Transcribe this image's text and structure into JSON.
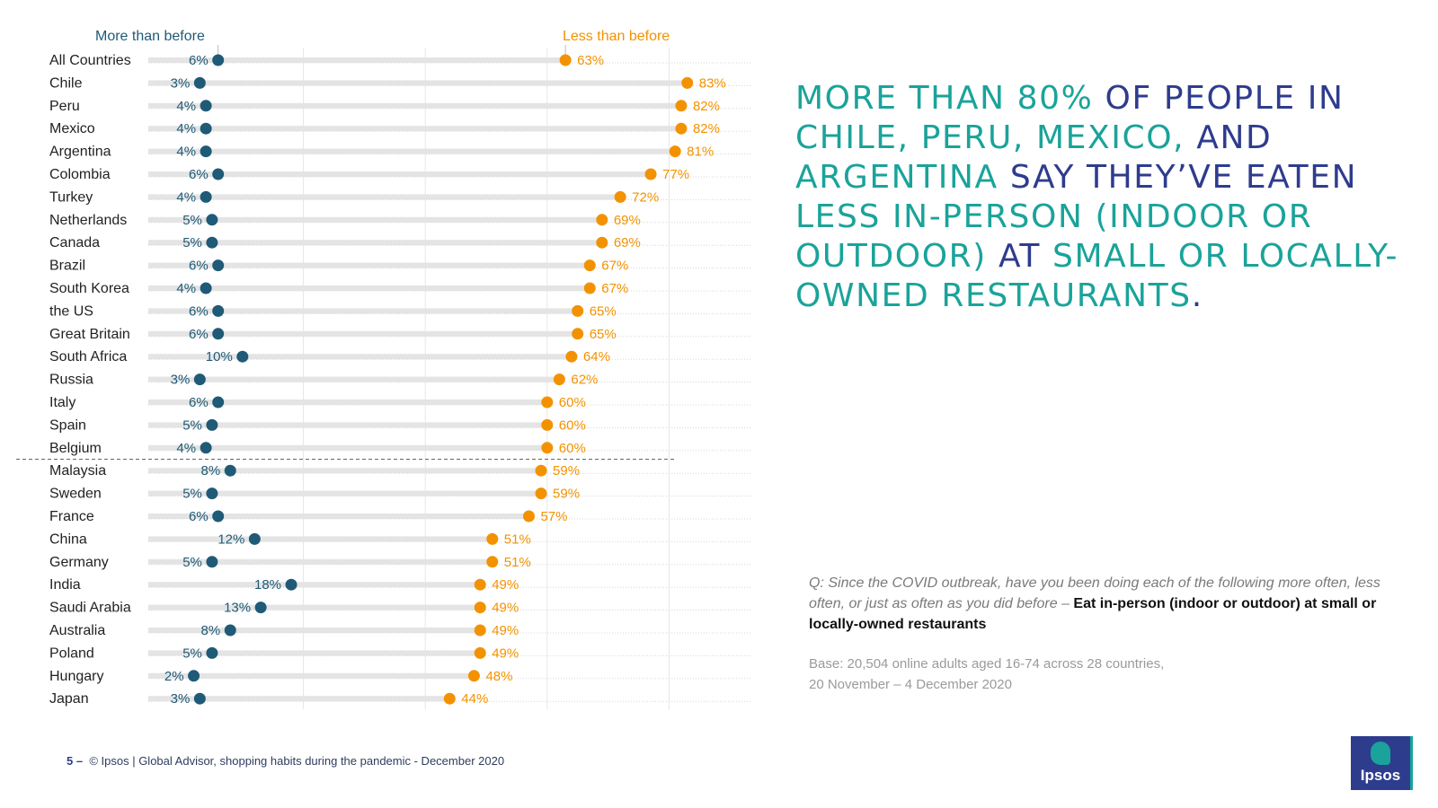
{
  "chart_data": {
    "type": "dot",
    "legend": {
      "more": "More than before",
      "less": "Less than before"
    },
    "colors": {
      "more": "#1f5a77",
      "less": "#f39200"
    },
    "xlim": [
      0,
      100
    ],
    "categories": [
      "All Countries",
      "Chile",
      "Peru",
      "Mexico",
      "Argentina",
      "Colombia",
      "Turkey",
      "Netherlands",
      "Canada",
      "Brazil",
      "South Korea",
      "the US",
      "Great Britain",
      "South Africa",
      "Russia",
      "Italy",
      "Spain",
      "Belgium",
      "Malaysia",
      "Sweden",
      "France",
      "China",
      "Germany",
      "India",
      "Saudi Arabia",
      "Australia",
      "Poland",
      "Hungary",
      "Japan"
    ],
    "series": [
      {
        "name": "More than before",
        "values": [
          6,
          3,
          4,
          4,
          4,
          6,
          4,
          5,
          5,
          6,
          4,
          6,
          6,
          10,
          3,
          6,
          5,
          4,
          8,
          5,
          6,
          12,
          5,
          18,
          13,
          8,
          5,
          2,
          3
        ],
        "labels": [
          "6%",
          "3%",
          "4%",
          "4%",
          "4%",
          "6%",
          "4%",
          "5%",
          "5%",
          "6%",
          "4%",
          "6%",
          "6%",
          "10%",
          "3%",
          "6%",
          "5%",
          "4%",
          "8%",
          "5%",
          "6%",
          "12%",
          "5%",
          "18%",
          "13%",
          "8%",
          "5%",
          "2%",
          "3%"
        ]
      },
      {
        "name": "Less than before",
        "values": [
          63,
          83,
          82,
          82,
          81,
          77,
          72,
          69,
          69,
          67,
          67,
          65,
          65,
          64,
          62,
          60,
          60,
          60,
          59,
          59,
          57,
          51,
          51,
          49,
          49,
          49,
          49,
          48,
          44
        ],
        "labels": [
          "63%",
          "83%",
          "82%",
          "82%",
          "81%",
          "77%",
          "72%",
          "69%",
          "69%",
          "67%",
          "67%",
          "65%",
          "65%",
          "64%",
          "62%",
          "60%",
          "60%",
          "60%",
          "59%",
          "59%",
          "57%",
          "51%",
          "51%",
          "49%",
          "49%",
          "49%",
          "49%",
          "48%",
          "44%"
        ]
      }
    ],
    "divider_after": "Belgium",
    "grid": true
  },
  "headline": {
    "p1": "More than 80%",
    "p2": " of people in ",
    "p3": "Chile, Peru, Mexico,",
    "p4": " and ",
    "p5": "Argentina",
    "p6": " say they’ve eaten ",
    "p7": "less in-person (indoor or outdoor)",
    "p8": " at ",
    "p9": "small or locally-owned restaurants",
    "p10": "."
  },
  "question": {
    "text": "Q: Since the COVID outbreak, have you been doing each of the following more often, less often, or just as often as you did before – ",
    "item": "Eat in-person (indoor or outdoor) at small or locally-owned restaurants"
  },
  "base": {
    "line1": "Base: 20,504 online adults aged 16-74 across 28 countries,",
    "line2": "20 November – 4 December 2020"
  },
  "footer": {
    "page": "5",
    "dash": "–",
    "source": "© Ipsos |  Global Advisor, shopping habits during the pandemic - December 2020"
  },
  "logo": {
    "text": "Ipsos"
  }
}
